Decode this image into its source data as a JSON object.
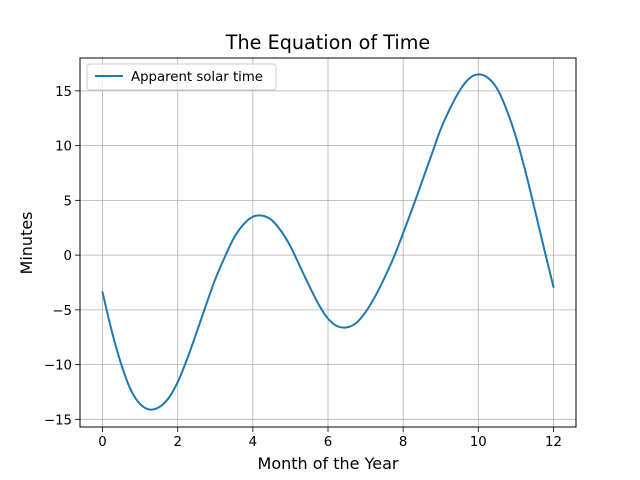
{
  "chart_data": {
    "type": "line",
    "title": "The Equation of Time",
    "xlabel": "Month of the Year",
    "ylabel": "Minutes",
    "xlim": [
      -0.6,
      12.6
    ],
    "ylim": [
      -15.7,
      18.0
    ],
    "xticks": [
      0,
      2,
      4,
      6,
      8,
      10,
      12
    ],
    "xtick_labels": [
      "0",
      "2",
      "4",
      "6",
      "8",
      "10",
      "12"
    ],
    "yticks": [
      -15,
      -10,
      -5,
      0,
      5,
      10,
      15
    ],
    "ytick_labels": [
      "−15",
      "−10",
      "−5",
      "0",
      "5",
      "10",
      "15"
    ],
    "grid": true,
    "legend_position": "top-left",
    "series": [
      {
        "name": "Apparent solar time",
        "color": "#1f77b4",
        "x": [
          0,
          0.25,
          0.5,
          0.75,
          1.0,
          1.25,
          1.5,
          1.75,
          2.0,
          2.25,
          2.5,
          2.75,
          3.0,
          3.25,
          3.5,
          3.75,
          4.0,
          4.25,
          4.5,
          4.75,
          5.0,
          5.25,
          5.5,
          5.75,
          6.0,
          6.25,
          6.5,
          6.75,
          7.0,
          7.25,
          7.5,
          7.75,
          8.0,
          8.25,
          8.5,
          8.75,
          9.0,
          9.25,
          9.5,
          9.75,
          10.0,
          10.25,
          10.5,
          10.75,
          11.0,
          11.25,
          11.5,
          11.75,
          12.0
        ],
        "y": [
          -3.4,
          -7.0,
          -10.0,
          -12.3,
          -13.6,
          -14.1,
          -13.9,
          -13.1,
          -11.6,
          -9.5,
          -7.1,
          -4.6,
          -2.2,
          -0.2,
          1.6,
          2.8,
          3.5,
          3.6,
          3.2,
          2.2,
          0.8,
          -1.0,
          -2.8,
          -4.5,
          -5.8,
          -6.5,
          -6.6,
          -6.2,
          -5.2,
          -3.8,
          -2.1,
          -0.2,
          2.0,
          4.3,
          6.7,
          9.1,
          11.5,
          13.4,
          15.0,
          16.1,
          16.5,
          16.2,
          15.2,
          13.3,
          10.8,
          7.7,
          4.2,
          0.6,
          -2.9
        ]
      }
    ]
  }
}
